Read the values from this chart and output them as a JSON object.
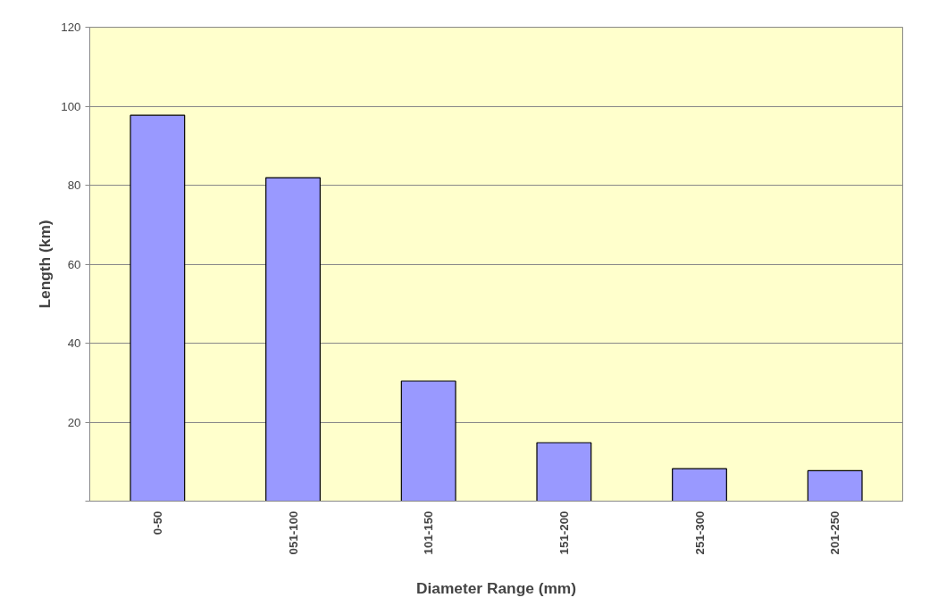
{
  "chart_data": {
    "type": "bar",
    "xlabel": "Diameter Range (mm)",
    "ylabel": "Length (km)",
    "categories": [
      "0-50",
      "051-100",
      "101-150",
      "151-200",
      "251-300",
      "201-250"
    ],
    "values": [
      97.7,
      81.9,
      30.4,
      14.8,
      8.2,
      7.7
    ],
    "color": "#9999ff",
    "ylim": [
      0,
      120
    ],
    "yticks": [
      {
        "value": 0,
        "label": null
      },
      20,
      40,
      60,
      80,
      100,
      120
    ],
    "grid": "y"
  }
}
